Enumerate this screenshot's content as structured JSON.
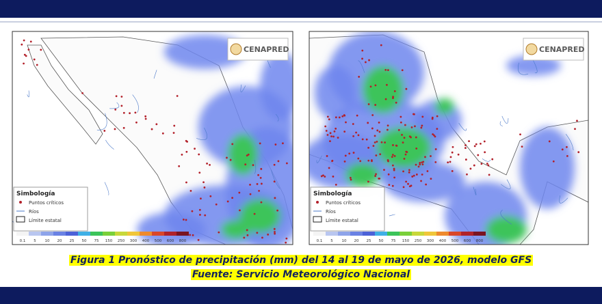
{
  "maps": [
    {
      "logo": "CENAPRED",
      "legend": {
        "title": "Simbología",
        "items": [
          "Puntos críticos",
          "Ríos",
          "Límite estatal"
        ]
      },
      "scale": [
        "0.1",
        "5",
        "10",
        "20",
        "25",
        "50",
        "75",
        "150",
        "250",
        "300",
        "400",
        "500",
        "600",
        "800"
      ]
    },
    {
      "logo": "CENAPRED",
      "legend": {
        "title": "Simbología",
        "items": [
          "Puntos críticos",
          "Ríos",
          "Límite estatal"
        ]
      },
      "scale": [
        "0.1",
        "5",
        "10",
        "20",
        "25",
        "50",
        "75",
        "150",
        "250",
        "300",
        "400",
        "500",
        "600",
        "800"
      ]
    }
  ],
  "caption": {
    "line1": "Figura 1 Pronóstico de precipitación (mm) del 14 al 19 de mayo de 2026, modelo GFS",
    "line2": "Fuente: Servicio Meteorológico Nacional"
  }
}
